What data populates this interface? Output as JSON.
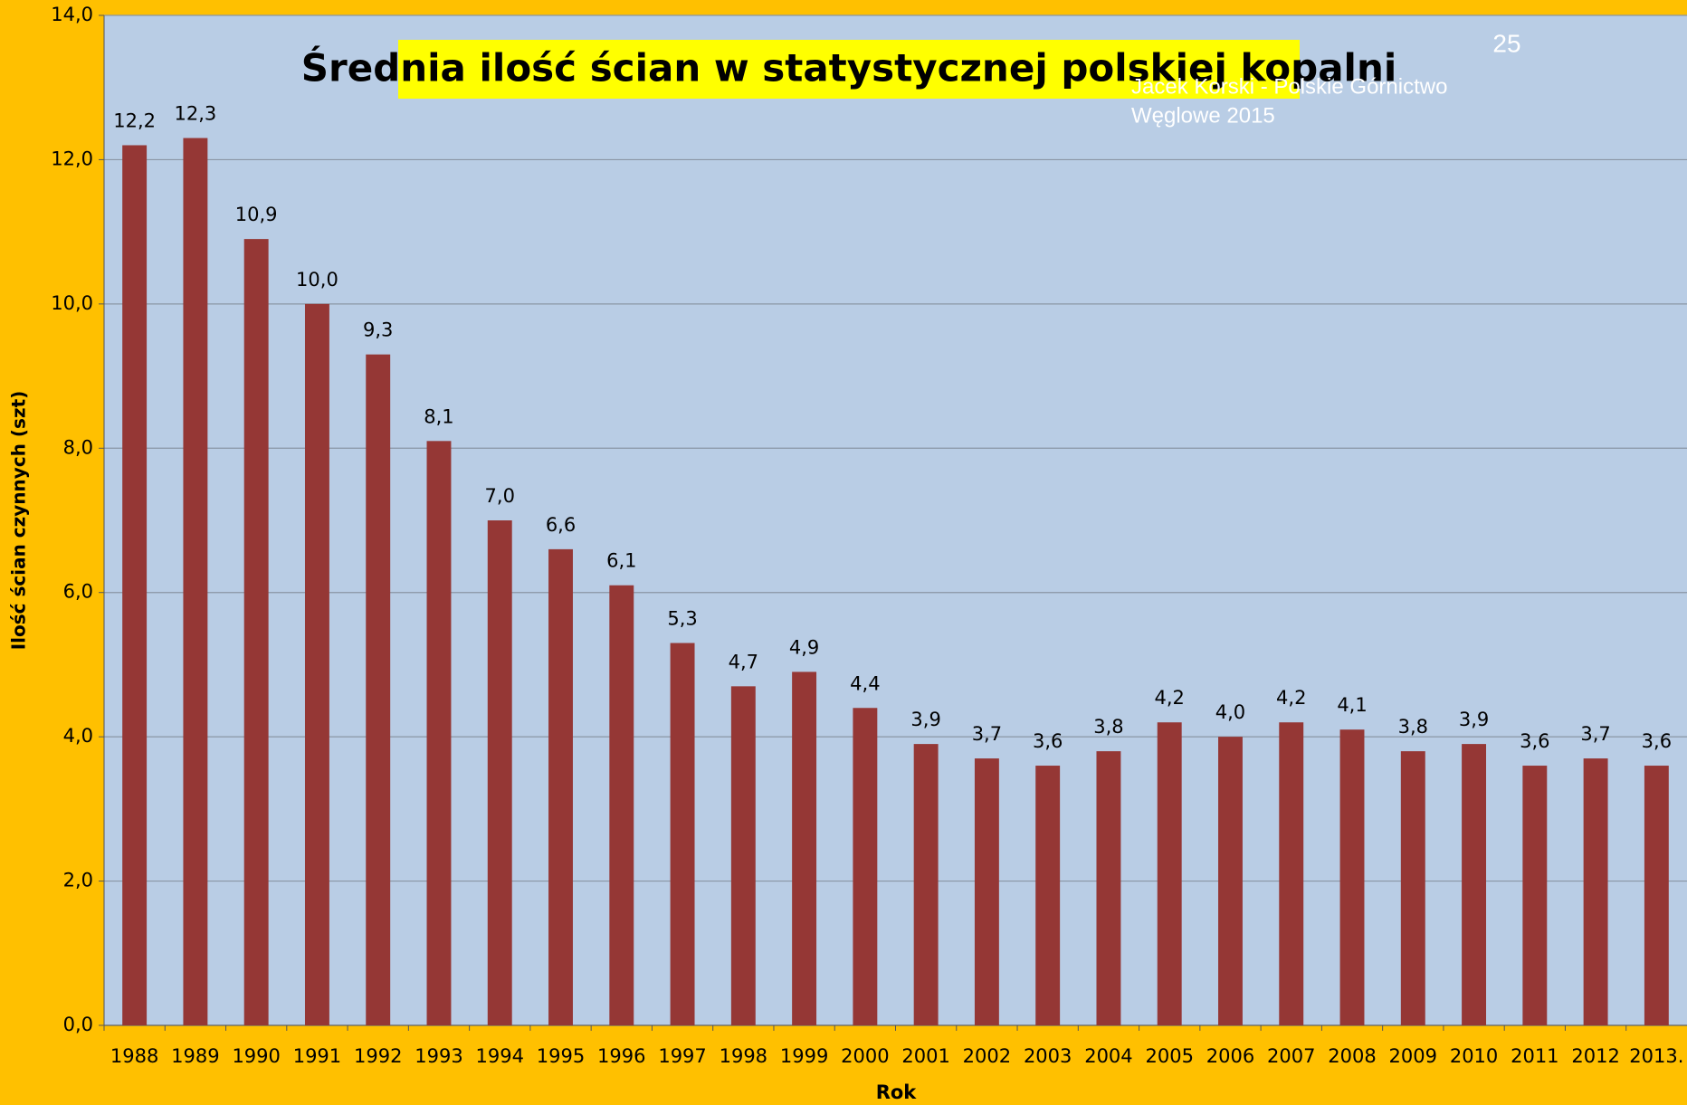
{
  "chart_data": {
    "type": "bar",
    "title": "Średnia ilość ścian w statystycznej polskiej kopalni",
    "page_number": "25",
    "watermark": [
      "Jacek Korski - Polskie Górnictwo",
      "Węglowe 2015"
    ],
    "x_label": "Rok",
    "y_label": "Ilość ścian czynnych (szt)",
    "categories": [
      "1988",
      "1989",
      "1990",
      "1991",
      "1992",
      "1993",
      "1994",
      "1995",
      "1996",
      "1997",
      "1998",
      "1999",
      "2000",
      "2001",
      "2002",
      "2003",
      "2004",
      "2005",
      "2006",
      "2007",
      "2008",
      "2009",
      "2010",
      "2011",
      "2012",
      "2013."
    ],
    "values": [
      12.2,
      12.3,
      10.9,
      10.0,
      9.3,
      8.1,
      7.0,
      6.6,
      6.1,
      5.3,
      4.7,
      4.9,
      4.4,
      3.9,
      3.7,
      3.6,
      3.8,
      4.2,
      4.0,
      4.2,
      4.1,
      3.8,
      3.9,
      3.6,
      3.7,
      3.6
    ],
    "value_labels": [
      "12,2",
      "12,3",
      "10,9",
      "10,0",
      "9,3",
      "8,1",
      "7,0",
      "6,6",
      "6,1",
      "5,3",
      "4,7",
      "4,9",
      "4,4",
      "3,9",
      "3,7",
      "3,6",
      "3,8",
      "4,2",
      "4,0",
      "4,2",
      "4,1",
      "3,8",
      "3,9",
      "3,6",
      "3,7",
      "3,6"
    ],
    "color": "#953735",
    "ylim": [
      0,
      14
    ],
    "yticks": [
      {
        "value": 0,
        "label": "0,0"
      },
      {
        "value": 2,
        "label": "2,0"
      },
      {
        "value": 4,
        "label": "4,0"
      },
      {
        "value": 6,
        "label": "6,0"
      },
      {
        "value": 8,
        "label": "8,0"
      },
      {
        "value": 10,
        "label": "10,0"
      },
      {
        "value": 12,
        "label": "12,0"
      },
      {
        "value": 14,
        "label": "14,0"
      }
    ],
    "grid": true
  }
}
